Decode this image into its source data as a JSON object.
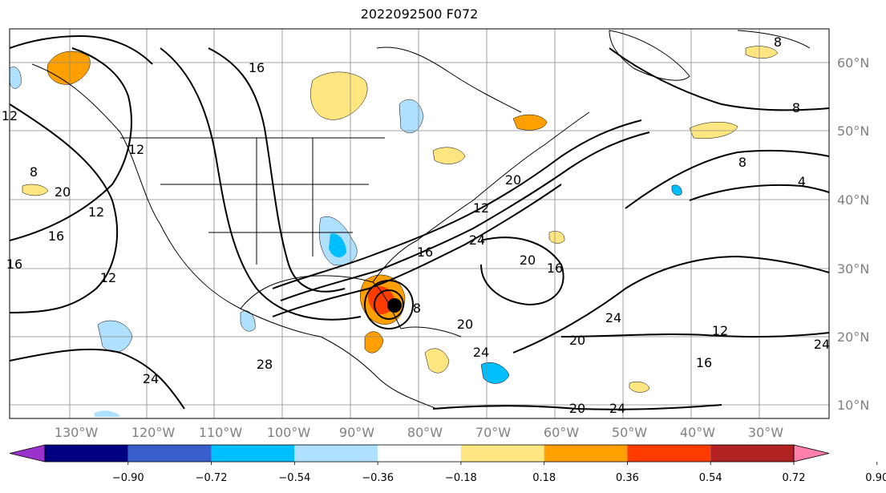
{
  "title": "2022092500 F072",
  "map": {
    "lon_labels": [
      "130°W",
      "120°W",
      "110°W",
      "100°W",
      "90°W",
      "80°W",
      "70°W",
      "60°W",
      "50°W",
      "40°W",
      "30°W"
    ],
    "lat_labels": [
      "60°N",
      "50°N",
      "40°N",
      "30°N",
      "20°N",
      "10°N"
    ],
    "contour_labels": [
      "16",
      "12",
      "8",
      "12",
      "12",
      "16",
      "20",
      "12",
      "16",
      "24",
      "16",
      "20",
      "24",
      "28",
      "8",
      "12",
      "20",
      "24",
      "20",
      "24",
      "20",
      "20",
      "24",
      "12",
      "16",
      "24",
      "8",
      "8",
      "4",
      "16",
      "8"
    ],
    "storm_marker": "hurricane-center"
  },
  "colorbar": {
    "tick_labels": [
      "−0.90",
      "−0.72",
      "−0.54",
      "−0.36",
      "−0.18",
      "0.18",
      "0.36",
      "0.54",
      "0.72",
      "0.90"
    ],
    "colors": [
      "#9933cc",
      "#000080",
      "#3a5fcd",
      "#00bfff",
      "#b0e0ff",
      "#ffffff",
      "#ffe680",
      "#ffa000",
      "#ff3c00",
      "#b22222",
      "#ff80aa"
    ]
  }
}
